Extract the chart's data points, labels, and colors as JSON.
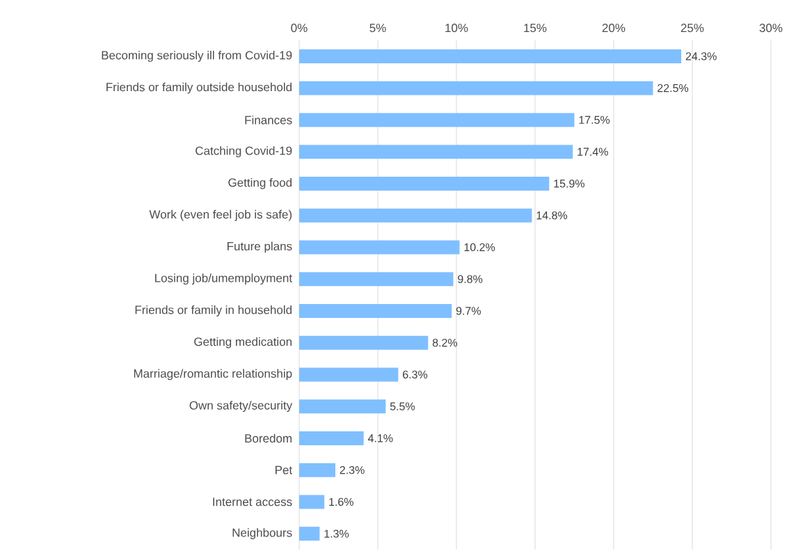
{
  "chart_data": {
    "type": "bar",
    "orientation": "horizontal",
    "categories": [
      "Becoming seriously ill from Covid-19",
      "Friends or family outside household",
      "Finances",
      "Catching Covid-19",
      "Getting food",
      "Work (even feel job is safe)",
      "Future plans",
      "Losing job/umemployment",
      "Friends or family in household",
      "Getting medication",
      "Marriage/romantic relationship",
      "Own safety/security",
      "Boredom",
      "Pet",
      "Internet access",
      "Neighbours"
    ],
    "values": [
      24.3,
      22.5,
      17.5,
      17.4,
      15.9,
      14.8,
      10.2,
      9.8,
      9.7,
      8.2,
      6.3,
      5.5,
      4.1,
      2.3,
      1.6,
      1.3
    ],
    "value_labels": [
      "24.3%",
      "22.5%",
      "17.5%",
      "17.4%",
      "15.9%",
      "14.8%",
      "10.2%",
      "9.8%",
      "9.7%",
      "8.2%",
      "6.3%",
      "5.5%",
      "4.1%",
      "2.3%",
      "1.6%",
      "1.3%"
    ],
    "color": "#7fbfff",
    "xlim": [
      0,
      30
    ],
    "xticks": [
      {
        "value": 0,
        "label": "0%"
      },
      {
        "value": 5,
        "label": "5%"
      },
      {
        "value": 10,
        "label": "10%"
      },
      {
        "value": 15,
        "label": "15%"
      },
      {
        "value": 20,
        "label": "20%"
      },
      {
        "value": 25,
        "label": "25%"
      },
      {
        "value": 30,
        "label": "30%"
      }
    ],
    "grid": "x"
  }
}
